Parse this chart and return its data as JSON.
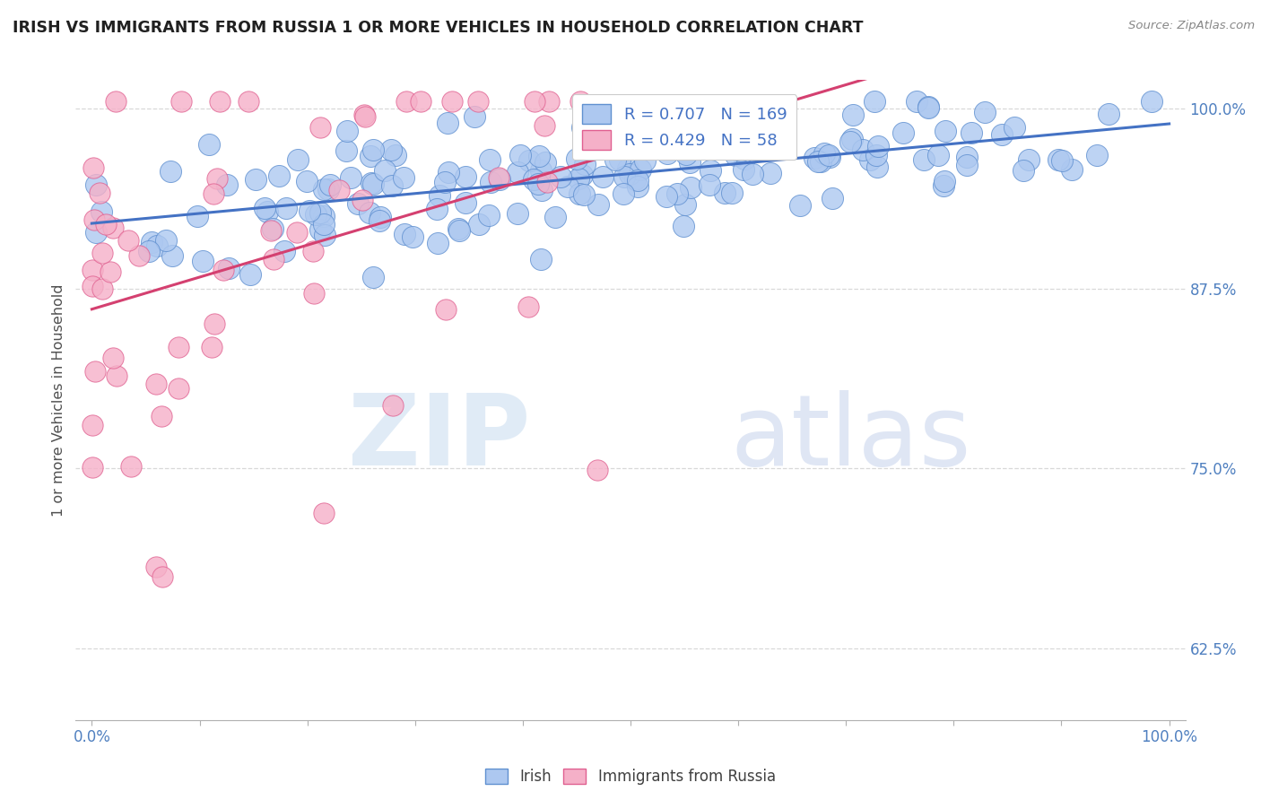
{
  "title": "IRISH VS IMMIGRANTS FROM RUSSIA 1 OR MORE VEHICLES IN HOUSEHOLD CORRELATION CHART",
  "source": "Source: ZipAtlas.com",
  "ylabel": "1 or more Vehicles in Household",
  "x_tick_positions": [
    0.0,
    0.1,
    0.2,
    0.3,
    0.4,
    0.5,
    0.6,
    0.7,
    0.8,
    0.9,
    1.0
  ],
  "y_ticks": [
    0.625,
    0.75,
    0.875,
    1.0
  ],
  "y_tick_labels": [
    "62.5%",
    "75.0%",
    "87.5%",
    "100.0%"
  ],
  "watermark_zip": "ZIP",
  "watermark_atlas": "atlas",
  "irish_R": 0.707,
  "irish_N": 169,
  "russia_R": 0.429,
  "russia_N": 58,
  "irish_color": "#adc8f0",
  "irish_edge_color": "#6090d0",
  "irish_line_color": "#4472c4",
  "russia_color": "#f5b0c8",
  "russia_edge_color": "#e06090",
  "russia_line_color": "#d44070",
  "background_color": "#ffffff",
  "grid_color": "#d8d8d8",
  "title_color": "#202020",
  "axis_label_color": "#5080c0",
  "legend_text_color": "#4472c4",
  "source_color": "#888888",
  "ylabel_color": "#505050"
}
